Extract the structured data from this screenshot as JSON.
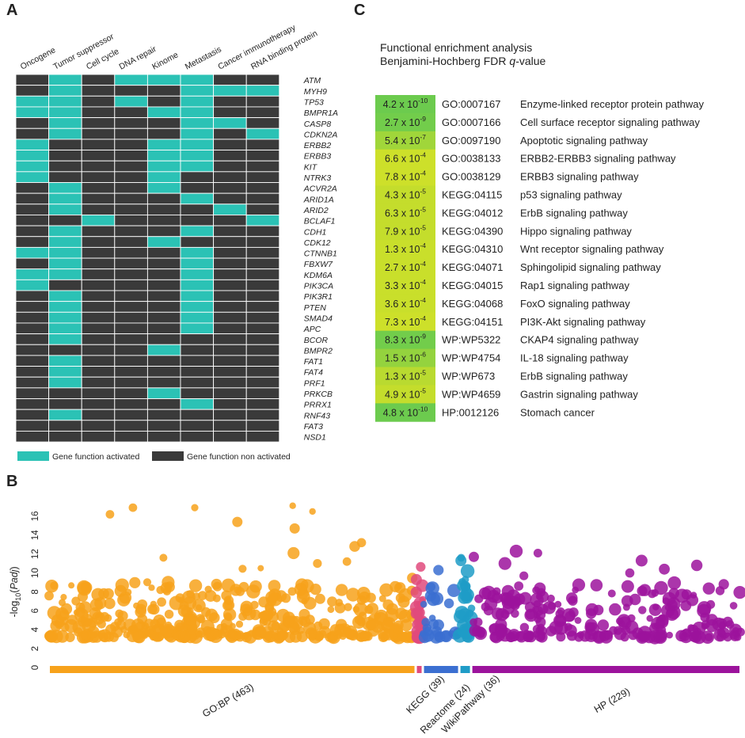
{
  "panels": {
    "a": "A",
    "b": "B",
    "c": "C"
  },
  "chart_data": [
    {
      "type": "heatmap",
      "id": "gene-function-heatmap",
      "columns": [
        "Oncogene",
        "Tumor suppressor",
        "Cell cycle",
        "DNA repair",
        "Kinome",
        "Metastasis",
        "Cancer immunotherapy",
        "RNA binding protein"
      ],
      "rows": [
        "ATM",
        "MYH9",
        "TP53",
        "BMPR1A",
        "CASP8",
        "CDKN2A",
        "ERBB2",
        "ERBB3",
        "KIT",
        "NTRK3",
        "ACVR2A",
        "ARID1A",
        "ARID2",
        "BCLAF1",
        "CDH1",
        "CDK12",
        "CTNNB1",
        "FBXW7",
        "KDM6A",
        "PIK3CA",
        "PIK3R1",
        "PTEN",
        "SMAD4",
        "APC",
        "BCOR",
        "BMPR2",
        "FAT1",
        "FAT4",
        "PRF1",
        "PRKCB",
        "PRRX1",
        "RNF43",
        "FAT3",
        "NSD1"
      ],
      "values": [
        [
          0,
          1,
          0,
          1,
          1,
          1,
          0,
          0
        ],
        [
          0,
          1,
          0,
          0,
          0,
          1,
          1,
          1
        ],
        [
          1,
          1,
          0,
          1,
          0,
          1,
          0,
          0
        ],
        [
          1,
          1,
          0,
          0,
          1,
          1,
          0,
          0
        ],
        [
          0,
          1,
          0,
          0,
          0,
          1,
          1,
          0
        ],
        [
          0,
          1,
          0,
          0,
          0,
          1,
          0,
          1
        ],
        [
          1,
          0,
          0,
          0,
          1,
          1,
          0,
          0
        ],
        [
          1,
          0,
          0,
          0,
          1,
          1,
          0,
          0
        ],
        [
          1,
          0,
          0,
          0,
          1,
          1,
          0,
          0
        ],
        [
          1,
          0,
          0,
          0,
          1,
          0,
          0,
          0
        ],
        [
          0,
          1,
          0,
          0,
          1,
          0,
          0,
          0
        ],
        [
          0,
          1,
          0,
          0,
          0,
          1,
          0,
          0
        ],
        [
          0,
          1,
          0,
          0,
          0,
          0,
          1,
          0
        ],
        [
          0,
          0,
          1,
          0,
          0,
          0,
          0,
          1
        ],
        [
          0,
          1,
          0,
          0,
          0,
          1,
          0,
          0
        ],
        [
          0,
          1,
          0,
          0,
          1,
          0,
          0,
          0
        ],
        [
          1,
          1,
          0,
          0,
          0,
          1,
          0,
          0
        ],
        [
          0,
          1,
          0,
          0,
          0,
          1,
          0,
          0
        ],
        [
          1,
          1,
          0,
          0,
          0,
          1,
          0,
          0
        ],
        [
          1,
          0,
          0,
          0,
          0,
          1,
          0,
          0
        ],
        [
          0,
          1,
          0,
          0,
          0,
          1,
          0,
          0
        ],
        [
          0,
          1,
          0,
          0,
          0,
          1,
          0,
          0
        ],
        [
          0,
          1,
          0,
          0,
          0,
          1,
          0,
          0
        ],
        [
          0,
          1,
          0,
          0,
          0,
          1,
          0,
          0
        ],
        [
          0,
          1,
          0,
          0,
          0,
          0,
          0,
          0
        ],
        [
          0,
          0,
          0,
          0,
          1,
          0,
          0,
          0
        ],
        [
          0,
          1,
          0,
          0,
          0,
          0,
          0,
          0
        ],
        [
          0,
          1,
          0,
          0,
          0,
          0,
          0,
          0
        ],
        [
          0,
          1,
          0,
          0,
          0,
          0,
          0,
          0
        ],
        [
          0,
          0,
          0,
          0,
          1,
          0,
          0,
          0
        ],
        [
          0,
          0,
          0,
          0,
          0,
          1,
          0,
          0
        ],
        [
          0,
          1,
          0,
          0,
          0,
          0,
          0,
          0
        ],
        [
          0,
          0,
          0,
          0,
          0,
          0,
          0,
          0
        ],
        [
          0,
          0,
          0,
          0,
          0,
          0,
          0,
          0
        ]
      ],
      "legend": [
        {
          "label": "Gene function activated",
          "color": "#2bc2b5"
        },
        {
          "label": "Gene function non activated",
          "color": "#3a3a3a"
        }
      ]
    },
    {
      "type": "scatter",
      "id": "manhattan-plot",
      "ylabel_prefix": "-log",
      "ylabel_sub": "10",
      "ylabel_open": "(",
      "ylabel_it": "Padj",
      "ylabel_close": ")",
      "ylim": [
        0,
        18
      ],
      "yticks": [
        0,
        2,
        4,
        6,
        8,
        10,
        12,
        14,
        16
      ],
      "series": [
        {
          "name": "GO:BP (463)",
          "color": "#f7a21b",
          "range": [
            0,
            463
          ],
          "seed": 11,
          "count": 420,
          "peaks": [
            17.1,
            16.9,
            16.9,
            16.2,
            16.5,
            15.4,
            14.7,
            13.2,
            12.8,
            12.1,
            11.6,
            11.2,
            11.0,
            10.5
          ]
        },
        {
          "name": "KEGG (39)",
          "color": "#e04a7d",
          "range": [
            463,
            472
          ],
          "seed": 23,
          "count": 30,
          "peaks": [
            9.3,
            7.2,
            6.8
          ]
        },
        {
          "name": "Reactome (24)",
          "color": "#3b6fd1",
          "range": [
            472,
            518
          ],
          "seed": 37,
          "count": 26,
          "peaks": [
            4.8,
            4.5
          ]
        },
        {
          "name": "WikiPathway (36)",
          "color": "#1f9cc7",
          "range": [
            518,
            533
          ],
          "seed": 41,
          "count": 34,
          "peaks": [
            11.6,
            11.3,
            10.2,
            9.3,
            8.6
          ]
        },
        {
          "name": "HP (229)",
          "color": "#9c139c",
          "range": [
            533,
            873
          ],
          "seed": 53,
          "count": 230,
          "peaks": [
            12.3,
            12.1,
            11.7,
            11.3,
            11.0,
            10.8,
            10.4,
            10.0
          ]
        }
      ],
      "xmax": 873
    },
    {
      "type": "table",
      "id": "functional-enrichment",
      "title": "Functional enrichment analysis",
      "subtitle_prefix": "Benjamini-Hochberg FDR ",
      "subtitle_q": "q",
      "subtitle_suffix": "-value",
      "rows": [
        {
          "mant": "4.2",
          "exp": "-10",
          "id": "GO:0007167",
          "name": "Enzyme-linked receptor protein pathway",
          "color": "#6ccb4e"
        },
        {
          "mant": "2.7",
          "exp": "-9",
          "id": "GO:0007166",
          "name": "Cell surface receptor signaling pathway",
          "color": "#72cd4b"
        },
        {
          "mant": "5.4",
          "exp": "-7",
          "id": "GO:0097190",
          "name": "Apoptotic signaling pathway",
          "color": "#a0d63a"
        },
        {
          "mant": "6.6",
          "exp": "-4",
          "id": "GO:0038133",
          "name": "ERBB2-ERBB3 signaling pathway",
          "color": "#cde02a"
        },
        {
          "mant": "7.8",
          "exp": "-4",
          "id": "GO:0038129",
          "name": "ERBB3 signaling pathway",
          "color": "#cde02a"
        },
        {
          "mant": "4.3",
          "exp": "-5",
          "id": "KEGG:04115",
          "name": "p53 signaling pathway",
          "color": "#c4dd2c"
        },
        {
          "mant": "6.3",
          "exp": "-5",
          "id": "KEGG:04012",
          "name": "ErbB signaling pathway",
          "color": "#c4dd2c"
        },
        {
          "mant": "7.9",
          "exp": "-5",
          "id": "KEGG:04390",
          "name": "Hippo signaling pathway",
          "color": "#c4dd2c"
        },
        {
          "mant": "1.3",
          "exp": "-4",
          "id": "KEGG:04310",
          "name": "Wnt receptor signaling pathway",
          "color": "#c9df2b"
        },
        {
          "mant": "2.7",
          "exp": "-4",
          "id": "KEGG:04071",
          "name": "Sphingolipid signaling pathway",
          "color": "#c9df2b"
        },
        {
          "mant": "3.3",
          "exp": "-4",
          "id": "KEGG:04015",
          "name": "Rap1 signaling pathway",
          "color": "#c9df2b"
        },
        {
          "mant": "3.6",
          "exp": "-4",
          "id": "KEGG:04068",
          "name": "FoxO signaling pathway",
          "color": "#c9df2b"
        },
        {
          "mant": "7.3",
          "exp": "-4",
          "id": "KEGG:04151",
          "name": "PI3K-Akt signaling pathway",
          "color": "#cde02a"
        },
        {
          "mant": "8.3",
          "exp": "-9",
          "id": "WP:WP5322",
          "name": "CKAP4 signaling pathway",
          "color": "#72cd4b"
        },
        {
          "mant": "1.5",
          "exp": "-6",
          "id": "WP:WP4754",
          "name": "IL-18 signaling pathway",
          "color": "#94d33e"
        },
        {
          "mant": "1.3",
          "exp": "-5",
          "id": "WP:WP673",
          "name": "ErbB signaling pathway",
          "color": "#b9da30"
        },
        {
          "mant": "4.9",
          "exp": "-5",
          "id": "WP:WP4659",
          "name": "Gastrin signaling pathway",
          "color": "#c4dd2c"
        },
        {
          "mant": "4.8",
          "exp": "-10",
          "id": "HP:0012126",
          "name": "Stomach cancer",
          "color": "#6ccb4e"
        }
      ]
    }
  ]
}
